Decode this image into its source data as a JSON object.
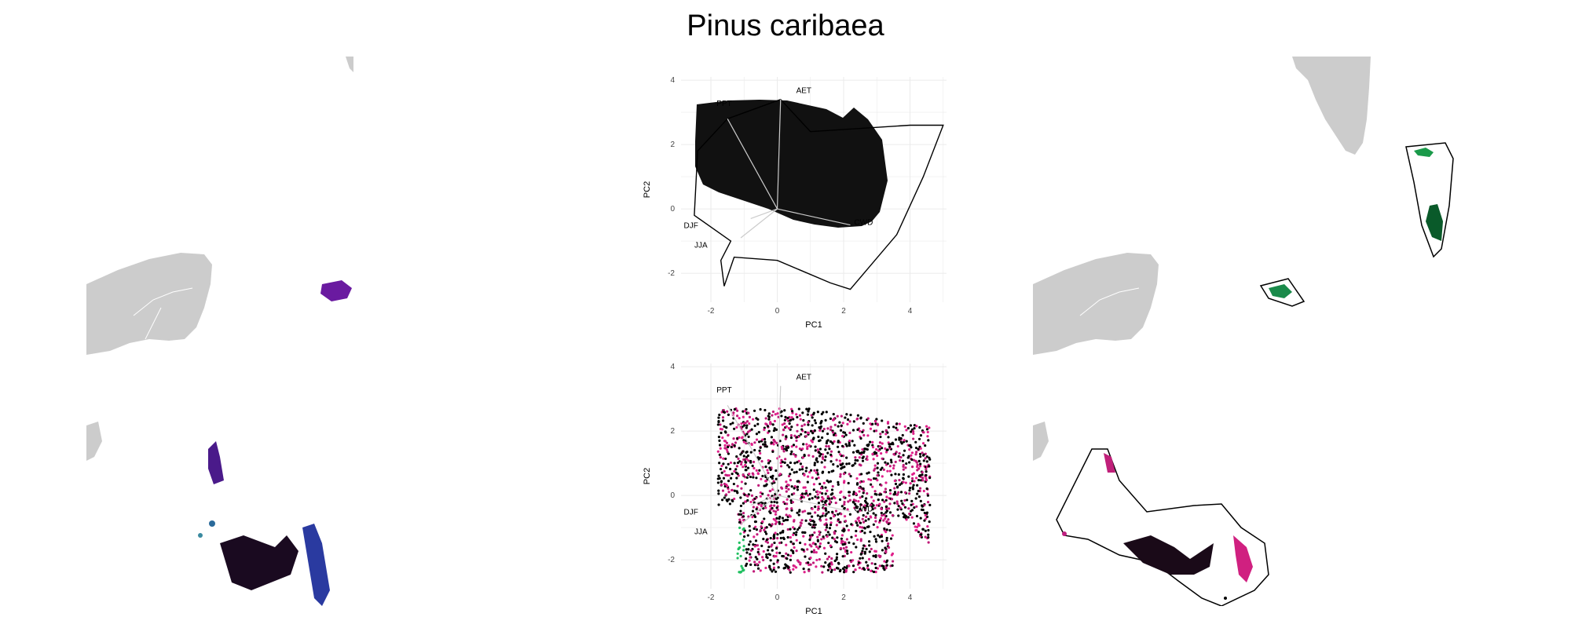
{
  "title": "Pinus caribaea",
  "colors": {
    "land": "#cccccc",
    "border": "#ffffff",
    "bahamas_magenta": "#e000f0",
    "cuba_purple": "#7a1ab0",
    "green": "#1a9a4a",
    "dark_green": "#0a5a2a",
    "pink": "#e0208a",
    "grid": "#ebebeb"
  },
  "chart_data": [
    {
      "type": "scatter",
      "title": "",
      "xlabel": "PC1",
      "ylabel": "PC2",
      "xlim": [
        -2.9,
        5.1
      ],
      "ylim": [
        -2.9,
        4.1
      ],
      "x_ticks": [
        -2,
        0,
        2,
        4
      ],
      "y_ticks": [
        -2,
        0,
        2,
        4
      ],
      "grid": true,
      "coloring": "rgb-by-climate",
      "hull": true,
      "loadings": [
        {
          "name": "PPT",
          "end": [
            -1.5,
            2.8
          ],
          "label_pos": [
            -1.6,
            3.2
          ]
        },
        {
          "name": "AET",
          "end": [
            0.1,
            3.4
          ],
          "label_pos": [
            0.8,
            3.6
          ]
        },
        {
          "name": "DJF",
          "end": [
            -0.8,
            -0.3
          ],
          "label_pos": [
            -2.6,
            -0.6
          ]
        },
        {
          "name": "JJA",
          "end": [
            -1.1,
            -0.9
          ],
          "label_pos": [
            -2.3,
            -1.2
          ]
        },
        {
          "name": "CWD",
          "end": [
            2.2,
            -0.5
          ],
          "label_pos": [
            2.6,
            -0.5
          ]
        }
      ]
    },
    {
      "type": "scatter",
      "title": "",
      "xlabel": "PC1",
      "ylabel": "PC2",
      "xlim": [
        -2.9,
        5.1
      ],
      "ylim": [
        -2.9,
        4.1
      ],
      "x_ticks": [
        -2,
        0,
        2,
        4
      ],
      "y_ticks": [
        -2,
        0,
        2,
        4
      ],
      "grid": true,
      "coloring": "pink-black-by-novelty",
      "hull": false,
      "loadings": [
        {
          "name": "PPT",
          "end": [
            -1.5,
            2.8
          ],
          "label_pos": [
            -1.6,
            3.2
          ]
        },
        {
          "name": "AET",
          "end": [
            0.1,
            3.4
          ],
          "label_pos": [
            0.8,
            3.6
          ]
        },
        {
          "name": "DJF",
          "end": [
            -0.8,
            -0.3
          ],
          "label_pos": [
            -2.6,
            -0.6
          ]
        },
        {
          "name": "JJA",
          "end": [
            -1.1,
            -0.9
          ],
          "label_pos": [
            -2.3,
            -1.2
          ]
        },
        {
          "name": "CWD",
          "end": [
            2.2,
            -0.5
          ],
          "label_pos": [
            2.6,
            -0.5
          ]
        }
      ]
    }
  ]
}
